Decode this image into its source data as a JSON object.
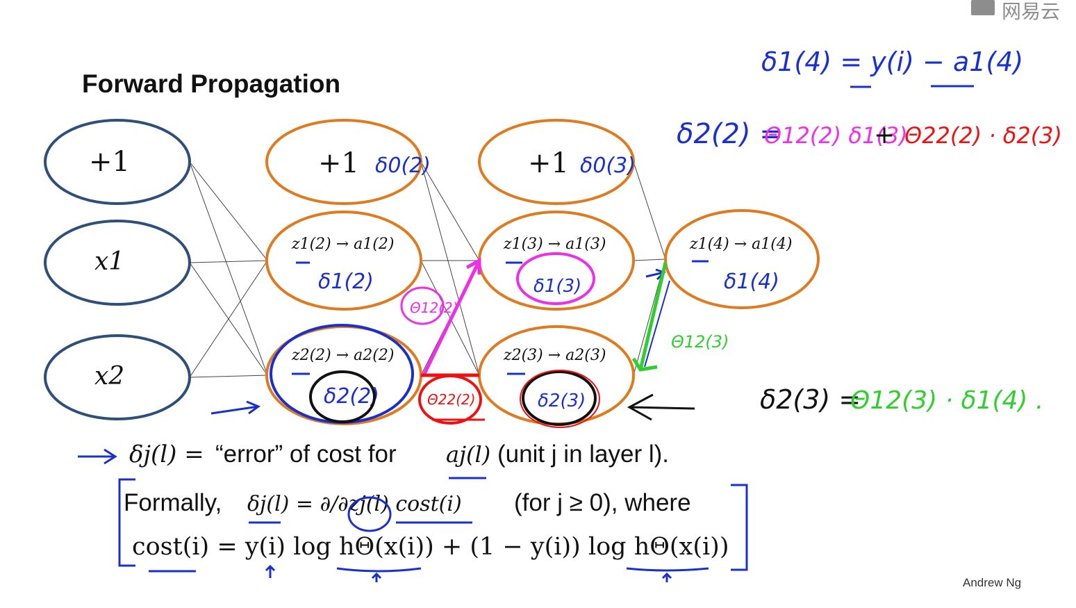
{
  "title": "Forward Propagation",
  "author": "Andrew Ng",
  "watermark": "网易云",
  "nodes": {
    "layer1": [
      "+1",
      "x1",
      "x2"
    ],
    "layer2_bias": "+1",
    "layer3_bias": "+1",
    "l2n1": "z1(2) → a1(2)",
    "l2n2": "z2(2) → a2(2)",
    "l3n1": "z1(3) → a1(3)",
    "l3n2": "z2(3) → a2(3)",
    "l4n1": "z1(4) → a1(4)"
  },
  "annotations": {
    "d0_2": "δ0(2)",
    "d0_3": "δ0(3)",
    "d1_2": "δ1(2)",
    "d2_2": "δ2(2)",
    "d1_3": "δ1(3)",
    "d2_3": "δ2(3)",
    "d1_4": "δ1(4)",
    "theta_magenta": "Θ12(2)",
    "theta_red": "Θ22(2)",
    "theta_green": "Θ12(3)"
  },
  "handwritten": {
    "eq1": "δ1(4) = y(i) − a1(4)",
    "eq2_left": "δ2(2) =",
    "eq2_t1": "Θ12(2) δ1(3)",
    "eq2_plus": "+",
    "eq2_t2": "Θ22(2) · δ2(3)",
    "eq3_left": "δ2(3) =",
    "eq3_right": "Θ12(3) · δ1(4) ."
  },
  "text": {
    "line1_sym": "δj(l) =",
    "line1_a": "“error” of cost for",
    "line1_b": "aj(l)",
    "line1_c": "(unit j in layer l).",
    "line2_a": "Formally,",
    "line2_b": "δj(l) = ∂/∂zj(l) cost(i)",
    "line2_c": "(for j ≥ 0), where",
    "line3": "cost(i) = y(i) log hΘ(x(i)) + (1 − y(i)) log hΘ(x(i))"
  },
  "colors": {
    "input_stroke": "#2e4f7a",
    "hidden_stroke": "#e07a1e",
    "ink_blue": "#1a2fd0",
    "ink_magenta": "#ee2ee8",
    "ink_red": "#ee1111",
    "ink_green": "#2ecf2e",
    "ink_black": "#111111"
  }
}
